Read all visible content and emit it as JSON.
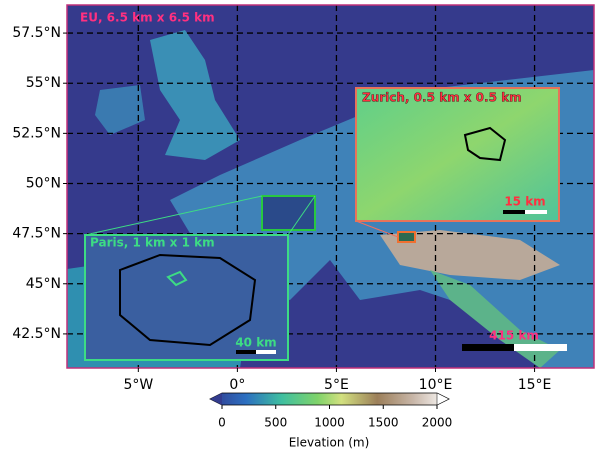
{
  "map": {
    "title": "EU, 6.5 km x 6.5 km",
    "xlim": [
      -8.6,
      18
    ],
    "ylim": [
      40.8,
      58.9
    ],
    "xticks": [
      {
        "value": -5,
        "label": "5°W"
      },
      {
        "value": 0,
        "label": "0°"
      },
      {
        "value": 5,
        "label": "5°E"
      },
      {
        "value": 10,
        "label": "10°E"
      },
      {
        "value": 15,
        "label": "15°E"
      }
    ],
    "yticks": [
      {
        "value": 42.5,
        "label": "42.5°N"
      },
      {
        "value": 45,
        "label": "45°N"
      },
      {
        "value": 47.5,
        "label": "47.5°N"
      },
      {
        "value": 50,
        "label": "50°N"
      },
      {
        "value": 52.5,
        "label": "52.5°N"
      },
      {
        "value": 55,
        "label": "55°N"
      },
      {
        "value": 57.5,
        "label": "57.5°N"
      }
    ],
    "scale_bar": "415 km"
  },
  "insets": [
    {
      "label": "Zurich, 0.5 km x 0.5 km",
      "scale_bar": "15 km"
    },
    {
      "label": "Paris, 1 km x 1 km",
      "scale_bar": "40 km"
    }
  ],
  "colorbar": {
    "label": "Elevation (m)",
    "lim": [
      0,
      2000
    ],
    "ticks": [
      0,
      500,
      1000,
      1500,
      2000
    ]
  }
}
